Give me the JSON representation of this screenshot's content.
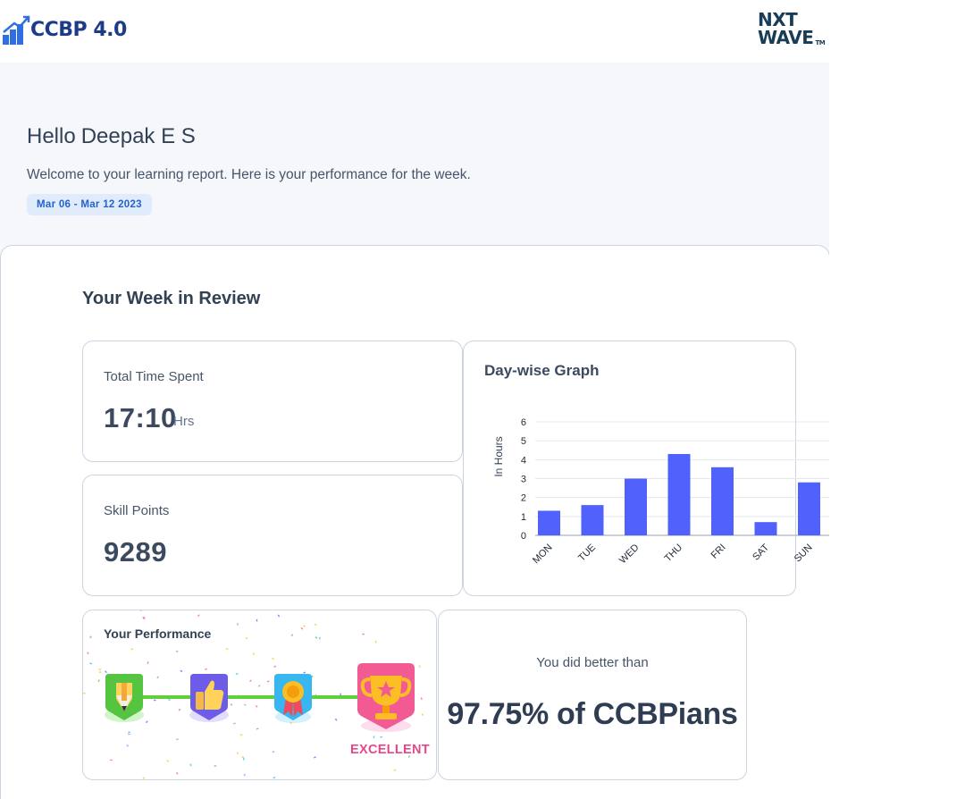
{
  "header": {
    "brand": "CCBP 4.0",
    "partner_logo_line1": "NXT",
    "partner_logo_line2": "WAVE",
    "partner_logo_tm": "TM"
  },
  "greeting": {
    "hello": "Hello",
    "name": "Deepak E S",
    "welcome": "Welcome to your learning report. Here is your performance for the week.",
    "date_range": "Mar 06 - Mar 12 2023"
  },
  "review": {
    "title": "Your Week in Review",
    "time_spent": {
      "label": "Total Time Spent",
      "value": "17:10",
      "unit": "Hrs"
    },
    "skill_points": {
      "label": "Skill Points",
      "value": "9289"
    },
    "graph_title": "Day-wise Graph",
    "performance": {
      "title": "Your Performance",
      "level": "EXCELLENT"
    },
    "comparison": {
      "label": "You did better than",
      "value": "97.75% of CCBPians"
    }
  },
  "colors": {
    "bar": "#5061fc",
    "accent": "#2563c9",
    "excellent": "#e4488b",
    "progress_line": "#5fd03a"
  },
  "chart_data": {
    "type": "bar",
    "ylabel": "In Hours",
    "xlabel": "",
    "categories": [
      "MON",
      "TUE",
      "WED",
      "THU",
      "FRI",
      "SAT",
      "SUN"
    ],
    "values": [
      1.3,
      1.6,
      3.0,
      4.3,
      3.6,
      0.7,
      2.8
    ],
    "ylim": [
      0,
      6
    ],
    "yticks": [
      0,
      1,
      2,
      3,
      4,
      5,
      6
    ],
    "grid": true
  }
}
